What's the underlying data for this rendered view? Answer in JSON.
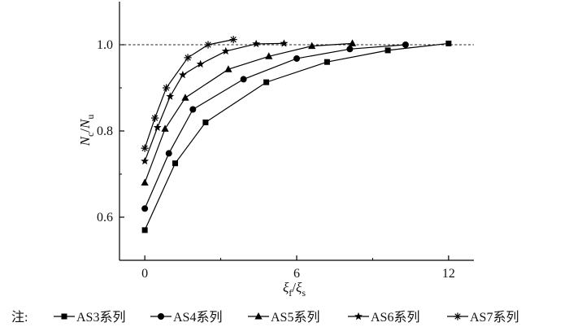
{
  "chart_data": {
    "type": "line",
    "title": "",
    "xlabel": {
      "main": "ξ",
      "sub1": "f",
      "slash": "/",
      "main2": "ξ",
      "sub2": "s"
    },
    "ylabel": {
      "main": "N",
      "sub1": "c",
      "slash": "/",
      "main2": "N",
      "sub2": "u"
    },
    "xlim": [
      -1,
      13.0
    ],
    "ylim": [
      0.5,
      1.1
    ],
    "xticks": [
      {
        "v": 0,
        "label": "0"
      },
      {
        "v": 6,
        "label": "6"
      },
      {
        "v": 12,
        "label": "12"
      }
    ],
    "yticks": [
      {
        "v": 0.6,
        "label": "0.6"
      },
      {
        "v": 0.8,
        "label": "0.8"
      },
      {
        "v": 1.0,
        "label": "1.0"
      }
    ],
    "reference_line": {
      "y": 1.0,
      "style": "dashed"
    },
    "legend_prefix": "注:",
    "series": [
      {
        "name": "AS3系列",
        "marker": "square",
        "x": [
          0,
          1.2,
          2.4,
          4.8,
          7.2,
          9.6,
          12.0
        ],
        "y": [
          0.57,
          0.725,
          0.82,
          0.913,
          0.96,
          0.987,
          1.003
        ]
      },
      {
        "name": "AS4系列",
        "marker": "circle",
        "x": [
          0,
          0.95,
          1.9,
          3.9,
          6.0,
          8.1,
          10.3
        ],
        "y": [
          0.62,
          0.748,
          0.85,
          0.92,
          0.968,
          0.99,
          1.0
        ]
      },
      {
        "name": "AS5系列",
        "marker": "triangle",
        "x": [
          0,
          0.8,
          1.6,
          3.3,
          4.9,
          6.6,
          8.2
        ],
        "y": [
          0.68,
          0.805,
          0.877,
          0.943,
          0.973,
          0.997,
          1.003
        ]
      },
      {
        "name": "AS6系列",
        "marker": "star",
        "x": [
          0,
          0.5,
          1.0,
          1.5,
          2.2,
          3.2,
          4.4,
          5.5
        ],
        "y": [
          0.73,
          0.808,
          0.88,
          0.93,
          0.955,
          0.985,
          1.002,
          1.003
        ]
      },
      {
        "name": "AS7系列",
        "marker": "asterisk",
        "x": [
          0,
          0.4,
          0.85,
          1.7,
          2.5,
          3.5
        ],
        "y": [
          0.76,
          0.83,
          0.9,
          0.97,
          1.0,
          1.012
        ]
      }
    ],
    "grid": false,
    "legend_position": "bottom"
  }
}
